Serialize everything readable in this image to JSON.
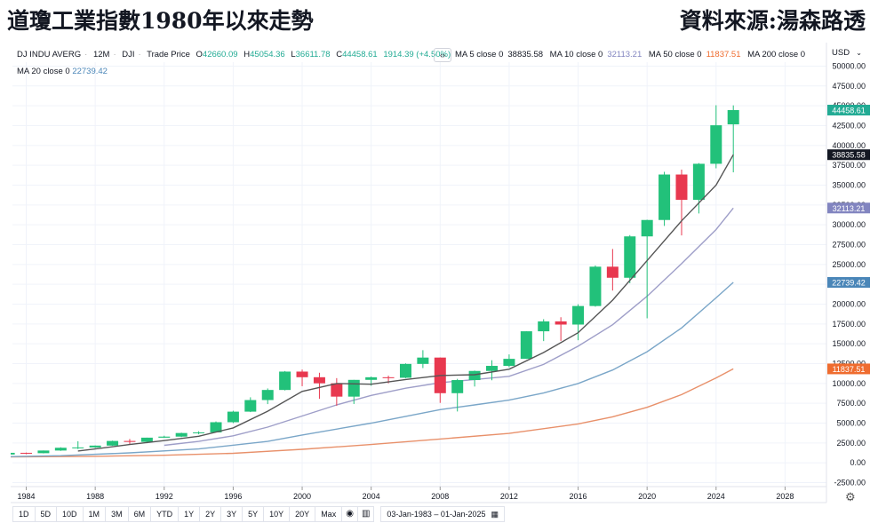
{
  "header": {
    "title": "道瓊工業指數1980年以來走勢",
    "source": "資料來源:湯森路透"
  },
  "legend": {
    "symbol": "DJ INDU AVERG",
    "interval": "12M",
    "exchange": "DJI",
    "mode": "Trade Price",
    "open_label": "O",
    "open": "42660.09",
    "high_label": "H",
    "high": "45054.36",
    "low_label": "L",
    "low": "36611.78",
    "close_label": "C",
    "close": "44458.61",
    "change": "1914.39 (+4.50%)",
    "collapse_glyph": "‹›"
  },
  "ma_legend": [
    {
      "label": "MA 5 close 0",
      "value": "38835.58",
      "color": "#131722"
    },
    {
      "label": "MA 10 close 0",
      "value": "32113.21",
      "color": "#9598c5"
    },
    {
      "label": "MA 50 close 0",
      "value": "11837.51",
      "color": "#ef6c2f"
    },
    {
      "label": "MA 200 close 0",
      "value": "",
      "color": "#131722"
    },
    {
      "label": "MA 20 close 0",
      "value": "22739.42",
      "color": "#4a86b8"
    }
  ],
  "currency": {
    "label": "USD",
    "arrow": "⌄"
  },
  "price_badges": [
    {
      "value": "44458.61",
      "color": "#22ab94"
    },
    {
      "value": "38835.58",
      "color": "#131722"
    },
    {
      "value": "32113.21",
      "color": "#8285c0"
    },
    {
      "value": "22739.42",
      "color": "#4a86b8"
    },
    {
      "value": "11837.51",
      "color": "#ef6c2f"
    }
  ],
  "toolbar": {
    "ranges": [
      "1D",
      "5D",
      "10D",
      "1M",
      "3M",
      "6M",
      "YTD",
      "1Y",
      "2Y",
      "3Y",
      "5Y",
      "10Y",
      "20Y",
      "Max"
    ],
    "date_range": "03-Jan-1983  –  01-Jan-2025",
    "calendar_icon": "▦",
    "settings_icon": "⚙",
    "compare_icon": "◉",
    "bars_icon": "▥"
  },
  "colors": {
    "up": "#22c17a",
    "down": "#e8384f",
    "ma5": "#555555",
    "ma10": "#9e9ec8",
    "ma20": "#7aa6c8",
    "ma50": "#e8906a"
  },
  "chart_data": {
    "type": "candlestick",
    "ylim": [
      -3000,
      50500
    ],
    "y_ticks": [
      -2500,
      0,
      2500,
      5000,
      7500,
      10000,
      12500,
      15000,
      17500,
      20000,
      22500,
      25000,
      27500,
      30000,
      32500,
      35000,
      37500,
      40000,
      42500,
      45000,
      47500,
      50000
    ],
    "y_tick_labels": [
      "-2500.00",
      "0.00",
      "2500.00",
      "5000.00",
      "7500.00",
      "10000.00",
      "12500.00",
      "15000.00",
      "17500.00",
      "20000.00",
      "22500.00",
      "25000.00",
      "27500.00",
      "30000.00",
      "32500.00",
      "35000.00",
      "37500.00",
      "40000.00",
      "42500.00",
      "45000.00",
      "47500.00",
      "50000.00"
    ],
    "x_ticks": [
      1984,
      1988,
      1992,
      1996,
      2000,
      2004,
      2008,
      2012,
      2016,
      2020,
      2024,
      2028
    ],
    "xlim": [
      1983.2,
      2030.4
    ],
    "candles": [
      {
        "year": 1983,
        "o": 1047,
        "h": 1287,
        "l": 1030,
        "c": 1259
      },
      {
        "year": 1984,
        "o": 1259,
        "h": 1287,
        "l": 1087,
        "c": 1212
      },
      {
        "year": 1985,
        "o": 1212,
        "h": 1553,
        "l": 1185,
        "c": 1547
      },
      {
        "year": 1986,
        "o": 1547,
        "h": 1956,
        "l": 1502,
        "c": 1896
      },
      {
        "year": 1987,
        "o": 1896,
        "h": 2722,
        "l": 1739,
        "c": 1939
      },
      {
        "year": 1988,
        "o": 1939,
        "h": 2184,
        "l": 1880,
        "c": 2169
      },
      {
        "year": 1989,
        "o": 2169,
        "h": 2791,
        "l": 2145,
        "c": 2753
      },
      {
        "year": 1990,
        "o": 2753,
        "h": 3000,
        "l": 2365,
        "c": 2634
      },
      {
        "year": 1991,
        "o": 2634,
        "h": 3169,
        "l": 2470,
        "c": 3169
      },
      {
        "year": 1992,
        "o": 3169,
        "h": 3413,
        "l": 3136,
        "c": 3301
      },
      {
        "year": 1993,
        "o": 3301,
        "h": 3794,
        "l": 3241,
        "c": 3754
      },
      {
        "year": 1994,
        "o": 3754,
        "h": 3978,
        "l": 3593,
        "c": 3834
      },
      {
        "year": 1995,
        "o": 3834,
        "h": 5216,
        "l": 3832,
        "c": 5117
      },
      {
        "year": 1996,
        "o": 5117,
        "h": 6561,
        "l": 5000,
        "c": 6448
      },
      {
        "year": 1997,
        "o": 6448,
        "h": 8259,
        "l": 6391,
        "c": 7908
      },
      {
        "year": 1998,
        "o": 7908,
        "h": 9374,
        "l": 7400,
        "c": 9181
      },
      {
        "year": 1999,
        "o": 9181,
        "h": 11569,
        "l": 9120,
        "c": 11497
      },
      {
        "year": 2000,
        "o": 11497,
        "h": 11750,
        "l": 9654,
        "c": 10787
      },
      {
        "year": 2001,
        "o": 10787,
        "h": 11350,
        "l": 8062,
        "c": 10021
      },
      {
        "year": 2002,
        "o": 10021,
        "h": 10673,
        "l": 7197,
        "c": 8342
      },
      {
        "year": 2003,
        "o": 8342,
        "h": 10454,
        "l": 7416,
        "c": 10454
      },
      {
        "year": 2004,
        "o": 10454,
        "h": 10868,
        "l": 9708,
        "c": 10783
      },
      {
        "year": 2005,
        "o": 10783,
        "h": 10984,
        "l": 10012,
        "c": 10718
      },
      {
        "year": 2006,
        "o": 10718,
        "h": 12529,
        "l": 10667,
        "c": 12463
      },
      {
        "year": 2007,
        "o": 12463,
        "h": 14198,
        "l": 11940,
        "c": 13265
      },
      {
        "year": 2008,
        "o": 13265,
        "h": 13279,
        "l": 7552,
        "c": 8776
      },
      {
        "year": 2009,
        "o": 8776,
        "h": 10580,
        "l": 6470,
        "c": 10428
      },
      {
        "year": 2010,
        "o": 10428,
        "h": 11625,
        "l": 9614,
        "c": 11578
      },
      {
        "year": 2011,
        "o": 11578,
        "h": 12928,
        "l": 10404,
        "c": 12218
      },
      {
        "year": 2012,
        "o": 12218,
        "h": 13661,
        "l": 12035,
        "c": 13104
      },
      {
        "year": 2013,
        "o": 13104,
        "h": 16588,
        "l": 13104,
        "c": 16577
      },
      {
        "year": 2014,
        "o": 16577,
        "h": 18103,
        "l": 15340,
        "c": 17823
      },
      {
        "year": 2015,
        "o": 17823,
        "h": 18351,
        "l": 15370,
        "c": 17425
      },
      {
        "year": 2016,
        "o": 17425,
        "h": 19987,
        "l": 15450,
        "c": 19763
      },
      {
        "year": 2017,
        "o": 19763,
        "h": 24876,
        "l": 19677,
        "c": 24719
      },
      {
        "year": 2018,
        "o": 24719,
        "h": 26951,
        "l": 21713,
        "c": 23327
      },
      {
        "year": 2019,
        "o": 23327,
        "h": 28701,
        "l": 22638,
        "c": 28538
      },
      {
        "year": 2020,
        "o": 28538,
        "h": 30637,
        "l": 18214,
        "c": 30606
      },
      {
        "year": 2021,
        "o": 30606,
        "h": 36679,
        "l": 29857,
        "c": 36338
      },
      {
        "year": 2022,
        "o": 36338,
        "h": 36952,
        "l": 28661,
        "c": 33147
      },
      {
        "year": 2023,
        "o": 33147,
        "h": 37778,
        "l": 31429,
        "c": 37690
      },
      {
        "year": 2024,
        "o": 37690,
        "h": 45073,
        "l": 37122,
        "c": 42544
      },
      {
        "year": 2025,
        "o": 42660,
        "h": 45054,
        "l": 36612,
        "c": 44459
      }
    ],
    "ma5": [
      [
        1987,
        1490
      ],
      [
        1988,
        1750
      ],
      [
        1990,
        2300
      ],
      [
        1992,
        2800
      ],
      [
        1994,
        3350
      ],
      [
        1996,
        4400
      ],
      [
        1998,
        6500
      ],
      [
        2000,
        9000
      ],
      [
        2002,
        10000
      ],
      [
        2004,
        9900
      ],
      [
        2006,
        10500
      ],
      [
        2008,
        11000
      ],
      [
        2010,
        11100
      ],
      [
        2012,
        11800
      ],
      [
        2014,
        13900
      ],
      [
        2016,
        16400
      ],
      [
        2018,
        20500
      ],
      [
        2020,
        25500
      ],
      [
        2022,
        30500
      ],
      [
        2024,
        35000
      ],
      [
        2025,
        38836
      ]
    ],
    "ma10": [
      [
        1992,
        2200
      ],
      [
        1994,
        2700
      ],
      [
        1996,
        3400
      ],
      [
        1998,
        4500
      ],
      [
        2000,
        5900
      ],
      [
        2002,
        7300
      ],
      [
        2004,
        8500
      ],
      [
        2006,
        9400
      ],
      [
        2008,
        10100
      ],
      [
        2010,
        10500
      ],
      [
        2012,
        10900
      ],
      [
        2014,
        12400
      ],
      [
        2016,
        14700
      ],
      [
        2018,
        17400
      ],
      [
        2020,
        21000
      ],
      [
        2022,
        25100
      ],
      [
        2024,
        29400
      ],
      [
        2025,
        32113
      ]
    ],
    "ma20": [
      [
        1983,
        780
      ],
      [
        1986,
        900
      ],
      [
        1990,
        1250
      ],
      [
        1994,
        1750
      ],
      [
        1998,
        2700
      ],
      [
        2000,
        3500
      ],
      [
        2004,
        5000
      ],
      [
        2008,
        6700
      ],
      [
        2010,
        7300
      ],
      [
        2012,
        7900
      ],
      [
        2014,
        8800
      ],
      [
        2016,
        10000
      ],
      [
        2018,
        11700
      ],
      [
        2020,
        14000
      ],
      [
        2022,
        17000
      ],
      [
        2024,
        20800
      ],
      [
        2025,
        22739
      ]
    ],
    "ma50": [
      [
        1983,
        750
      ],
      [
        1988,
        820
      ],
      [
        1992,
        950
      ],
      [
        1996,
        1200
      ],
      [
        2000,
        1700
      ],
      [
        2004,
        2300
      ],
      [
        2008,
        3000
      ],
      [
        2012,
        3700
      ],
      [
        2016,
        4900
      ],
      [
        2018,
        5800
      ],
      [
        2020,
        7000
      ],
      [
        2022,
        8600
      ],
      [
        2024,
        10700
      ],
      [
        2025,
        11838
      ]
    ]
  }
}
